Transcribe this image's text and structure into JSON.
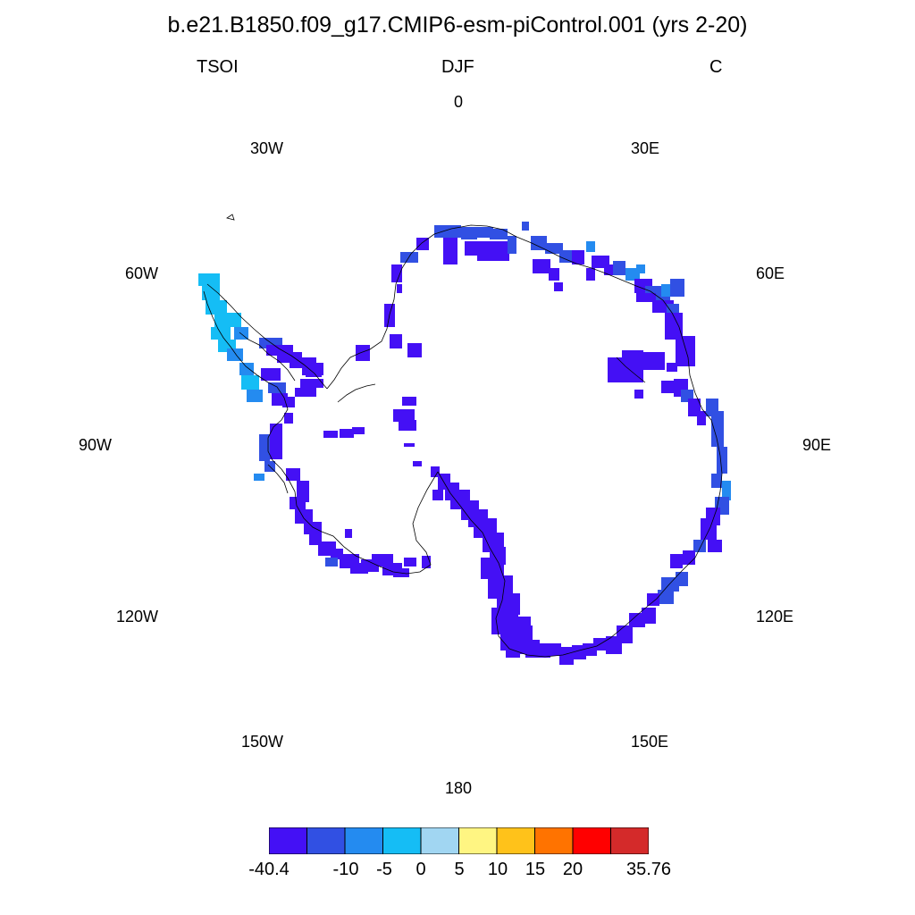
{
  "title": "b.e21.B1850.f09_g17.CMIP6-esm-piControl.001 (yrs 2-20)",
  "variable": "TSOI",
  "season": "DJF",
  "units": "C",
  "longitude_labels": {
    "lon_0": "0",
    "lon_30e": "30E",
    "lon_60e": "60E",
    "lon_90e": "90E",
    "lon_120e": "120E",
    "lon_150e": "150E",
    "lon_180": "180",
    "lon_150w": "150W",
    "lon_120w": "120W",
    "lon_90w": "90W",
    "lon_60w": "60W",
    "lon_30w": "30W"
  },
  "colorbar": {
    "colors": [
      "#4410f5",
      "#3150e3",
      "#248bf0",
      "#15bdf5",
      "#a1d6f2",
      "#fff582",
      "#ffc21a",
      "#ff7300",
      "#ff0000",
      "#d42a2a"
    ],
    "tick_labels": [
      "-40.4",
      "-10",
      "-5",
      "0",
      "5",
      "10",
      "15",
      "20",
      "35.76"
    ]
  },
  "map_colors": {
    "lowest": "#4410f5",
    "low": "#3150e3",
    "mid": "#248bf0",
    "cyan": "#15bdf5"
  }
}
